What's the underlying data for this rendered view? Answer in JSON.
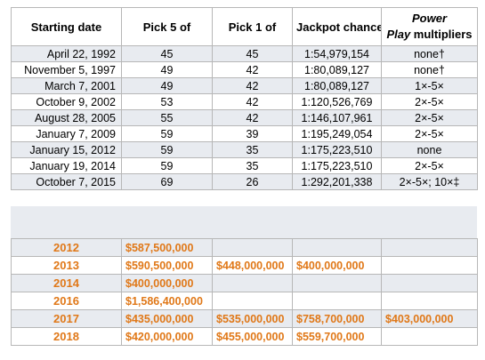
{
  "powerball": {
    "headers": {
      "starting_date": "Starting date",
      "pick5": "Pick 5 of",
      "pick1": "Pick 1 of",
      "jackpot": "Jackpot chance",
      "power_line1": "Power",
      "power_line2_italic": "Play",
      "power_line2_rest": " multipliers"
    },
    "rows": [
      {
        "date": "April 22, 1992",
        "pick5": "45",
        "pick1": "45",
        "chance": "1:54,979,154",
        "power": "none†"
      },
      {
        "date": "November 5, 1997",
        "pick5": "49",
        "pick1": "42",
        "chance": "1:80,089,127",
        "power": "none†"
      },
      {
        "date": "March 7, 2001",
        "pick5": "49",
        "pick1": "42",
        "chance": "1:80,089,127",
        "power": "1×-5×"
      },
      {
        "date": "October 9, 2002",
        "pick5": "53",
        "pick1": "42",
        "chance": "1:120,526,769",
        "power": "2×-5×"
      },
      {
        "date": "August 28, 2005",
        "pick5": "55",
        "pick1": "42",
        "chance": "1:146,107,961",
        "power": "2×-5×"
      },
      {
        "date": "January 7, 2009",
        "pick5": "59",
        "pick1": "39",
        "chance": "1:195,249,054",
        "power": "2×-5×"
      },
      {
        "date": "January 15, 2012",
        "pick5": "59",
        "pick1": "35",
        "chance": "1:175,223,510",
        "power": "none"
      },
      {
        "date": "January 19, 2014",
        "pick5": "59",
        "pick1": "35",
        "chance": "1:175,223,510",
        "power": "2×-5×"
      },
      {
        "date": "October 7, 2015",
        "pick5": "69",
        "pick1": "26",
        "chance": "1:292,201,338",
        "power": "2×-5×; 10×‡"
      }
    ]
  },
  "jackpots": {
    "rows": [
      {
        "year": "2012",
        "a": "$587,500,000",
        "b": "",
        "c": "",
        "d": ""
      },
      {
        "year": "2013",
        "a": "$590,500,000",
        "b": "$448,000,000",
        "c": "$400,000,000",
        "d": ""
      },
      {
        "year": "2014",
        "a": "$400,000,000",
        "b": "",
        "c": "",
        "d": ""
      },
      {
        "year": "2016",
        "a": "$1,586,400,000",
        "b": "",
        "c": "",
        "d": ""
      },
      {
        "year": "2017",
        "a": "$435,000,000",
        "b": "$535,000,000",
        "c": "$758,700,000",
        "d": "$403,000,000"
      },
      {
        "year": "2018",
        "a": "$420,000,000",
        "b": "$455,000,000",
        "c": "$559,700,000",
        "d": ""
      }
    ]
  }
}
